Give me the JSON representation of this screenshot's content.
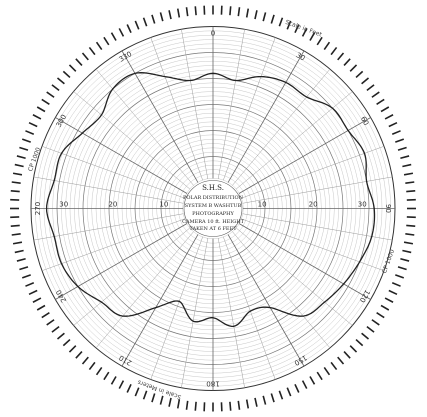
{
  "chart_data": {
    "type": "polar-line",
    "title": "",
    "angle_labels": [
      "0",
      "30",
      "60",
      "90",
      "120",
      "150",
      "180",
      "210",
      "240",
      "270",
      "300",
      "330"
    ],
    "radial_tick_labels": [
      "30",
      "20",
      "10",
      "10",
      "20",
      "30"
    ],
    "corner_notes": [
      "Scale in Feet",
      "CP 1000",
      "CP 1000",
      "Scale in Meters"
    ],
    "center_label": [
      "S.H.S.",
      "POLAR DISTRIBUTION",
      "SYSTEM B WASHTUB",
      "PHOTOGRAPHY",
      "CAMERA 10 ft. HEIGHT",
      "TAKEN AT 6 FEET"
    ],
    "radial_max": 35,
    "grid": true,
    "series": [
      {
        "angles_deg": [
          0,
          10,
          20,
          30,
          40,
          50,
          60,
          70,
          80,
          90,
          100,
          110,
          120,
          130,
          140,
          150,
          160,
          170,
          180,
          190,
          200,
          210,
          220,
          230,
          240,
          250,
          260,
          270,
          280,
          290,
          300,
          310,
          320,
          330,
          340,
          350
        ],
        "values": [
          26,
          25,
          27,
          28,
          28,
          30,
          30,
          31,
          30,
          31,
          31,
          30,
          29,
          28,
          27,
          22,
          21,
          23,
          21,
          22,
          19,
          22,
          27,
          28,
          30,
          31,
          31,
          32,
          31,
          31,
          29,
          28,
          30,
          30,
          27,
          25
        ]
      }
    ]
  }
}
